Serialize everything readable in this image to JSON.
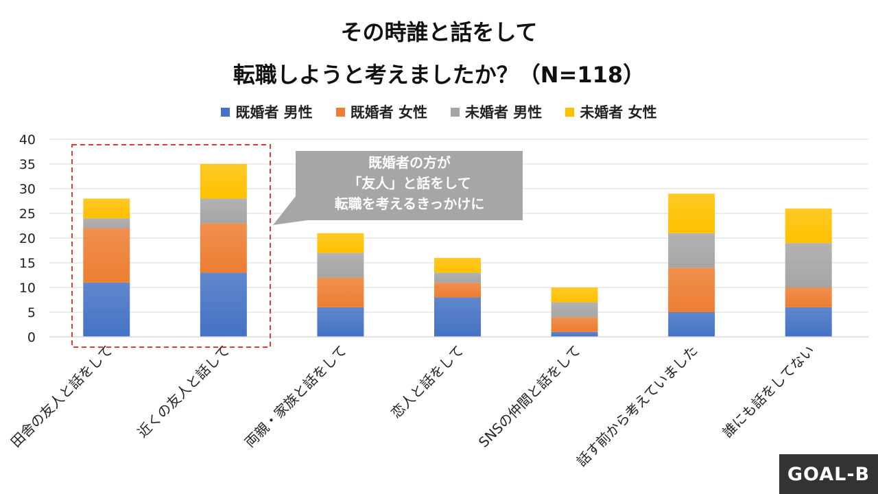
{
  "title": [
    "その時誰と話をして",
    "転職しようと考えましたか？（N=118）"
  ],
  "callout": [
    "既婚者の方が",
    "「友人」と話をして",
    "転職を考えるきっかけに"
  ],
  "logo": "GOAL-B",
  "colors": {
    "series": [
      "#4472C4",
      "#ED7D31",
      "#A5A5A5",
      "#FFC000"
    ],
    "highlight_border": "#E03C31",
    "callout_bg": "#A6A6A6",
    "grid": "#D9D9D9"
  },
  "chart_data": {
    "type": "bar",
    "stacked": true,
    "categories": [
      "田舎の友人と話をして",
      "近くの友人と話して",
      "両親・家族と話をして",
      "恋人と話をして",
      "SNSの仲間と話をして",
      "話す前から考えていました",
      "誰にも話をしてない"
    ],
    "series": [
      {
        "name": "既婚者 男性",
        "values": [
          11,
          13,
          6,
          8,
          1,
          5,
          6
        ]
      },
      {
        "name": "既婚者 女性",
        "values": [
          11,
          10,
          6,
          3,
          3,
          9,
          4
        ]
      },
      {
        "name": "未婚者 男性",
        "values": [
          2,
          5,
          5,
          2,
          3,
          7,
          9
        ]
      },
      {
        "name": "未婚者 女性",
        "values": [
          4,
          7,
          4,
          3,
          3,
          8,
          7
        ]
      }
    ],
    "y_ticks": [
      "0",
      "5",
      "10",
      "15",
      "20",
      "25",
      "30",
      "35",
      "40"
    ],
    "ylim": [
      0,
      40
    ],
    "grid": true,
    "legend_position": "top"
  }
}
